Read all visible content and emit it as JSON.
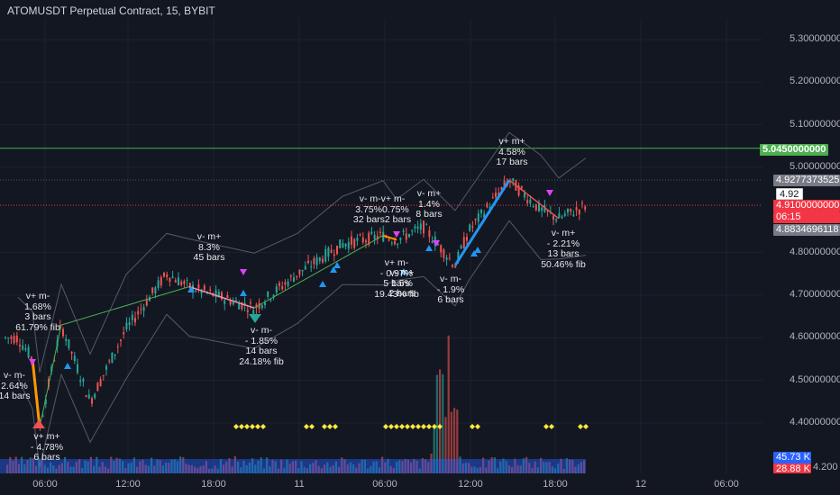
{
  "window": {
    "title": "ATOMUSDT Perpetual Contract, 15, BYBIT"
  },
  "price_axis": {
    "ticks": [
      "5.3000000000",
      "5.2000000000",
      "5.1000000000",
      "5.0000000000",
      "4.8000000000",
      "4.7000000000",
      "4.6000000000",
      "4.5000000000",
      "4.4000000000"
    ]
  },
  "time_axis": {
    "ticks": [
      "06:00",
      "12:00",
      "18:00",
      "11",
      "06:00",
      "12:00",
      "18:00",
      "12",
      "06:00"
    ]
  },
  "price_tags": {
    "line_price": "5.0450000000",
    "upper_band": "4.9277373525",
    "ref_price": "4.92",
    "last_price": "4.9100000000",
    "countdown": "06:15",
    "lower_band": "4.8834696118",
    "volume": "45.73 K",
    "volume_ma": "28.88 K",
    "bottom_price": "4.2000000000"
  },
  "colors": {
    "background": "#131722",
    "up_candle": "#26a69a",
    "down_candle": "#ef5350",
    "green_tag": "#4caf50",
    "red_tag": "#f23645",
    "gray_tag": "#787b86",
    "volume_tag": "#2962ff",
    "zigzag_up": "#4caf50",
    "swing_up": "#2196f3",
    "swing_down": "#ff9800",
    "signal_magenta": "#e040fb",
    "signal_yellow": "#ffeb3b"
  },
  "annotations": [
    {
      "lines": [
        "v+ m-",
        "1.68%",
        "3 bars",
        "61.79% fib"
      ]
    },
    {
      "lines": [
        "v- m-",
        "2.64%",
        "14 bars"
      ]
    },
    {
      "lines": [
        "v+ m+",
        "- 4.78%",
        "6 bars"
      ]
    },
    {
      "lines": [
        "v- m+",
        "8.3%",
        "45 bars"
      ]
    },
    {
      "lines": [
        "v- m-",
        "- 1.85%",
        "14 bars",
        "24.18% fib"
      ]
    },
    {
      "lines": [
        "v- m-v+ m-",
        "3.75%0.75%",
        "32 bars2 bars"
      ]
    },
    {
      "lines": [
        "v- m+",
        "1.4%",
        "8 bars"
      ]
    },
    {
      "lines": [
        "v+ m-",
        "- 0.97%",
        "5 bars",
        "19.43% fib"
      ]
    },
    {
      "lines": [
        "v- m+",
        "1.5%",
        "2 bars"
      ]
    },
    {
      "lines": [
        "v- m-",
        "- 1.9%",
        "6 bars"
      ]
    },
    {
      "lines": [
        "v+ m+",
        "4.58%",
        "17 bars"
      ]
    },
    {
      "lines": [
        "v- m+",
        "- 2.21%",
        "13 bars",
        "50.46% fib"
      ]
    }
  ],
  "chart_data": {
    "type": "line",
    "title": "ATOMUSDT Perpetual Contract, 15, BYBIT",
    "xlabel": "",
    "ylabel": "",
    "ylim": [
      4.2,
      5.35
    ],
    "x": [
      "10 03:00",
      "10 05:00",
      "10 05:30",
      "10 07:00",
      "10 09:00",
      "10 12:00",
      "10 15:00",
      "10 17:30",
      "10 20:00",
      "11 00:00",
      "11 03:00",
      "11 06:00",
      "11 08:00",
      "11 09:30",
      "11 11:00",
      "11 12:00",
      "11 14:00",
      "11 16:00",
      "11 18:00",
      "11 20:00"
    ],
    "series": [
      {
        "values": [
          4.6,
          4.55,
          4.39,
          4.63,
          4.45,
          4.62,
          4.75,
          4.72,
          4.67,
          4.75,
          4.82,
          4.84,
          4.83,
          4.86,
          4.77,
          4.85,
          4.97,
          4.9,
          4.88,
          4.91
        ]
      }
    ],
    "horizontal_line": 5.045,
    "grid": true,
    "legend": "none"
  }
}
